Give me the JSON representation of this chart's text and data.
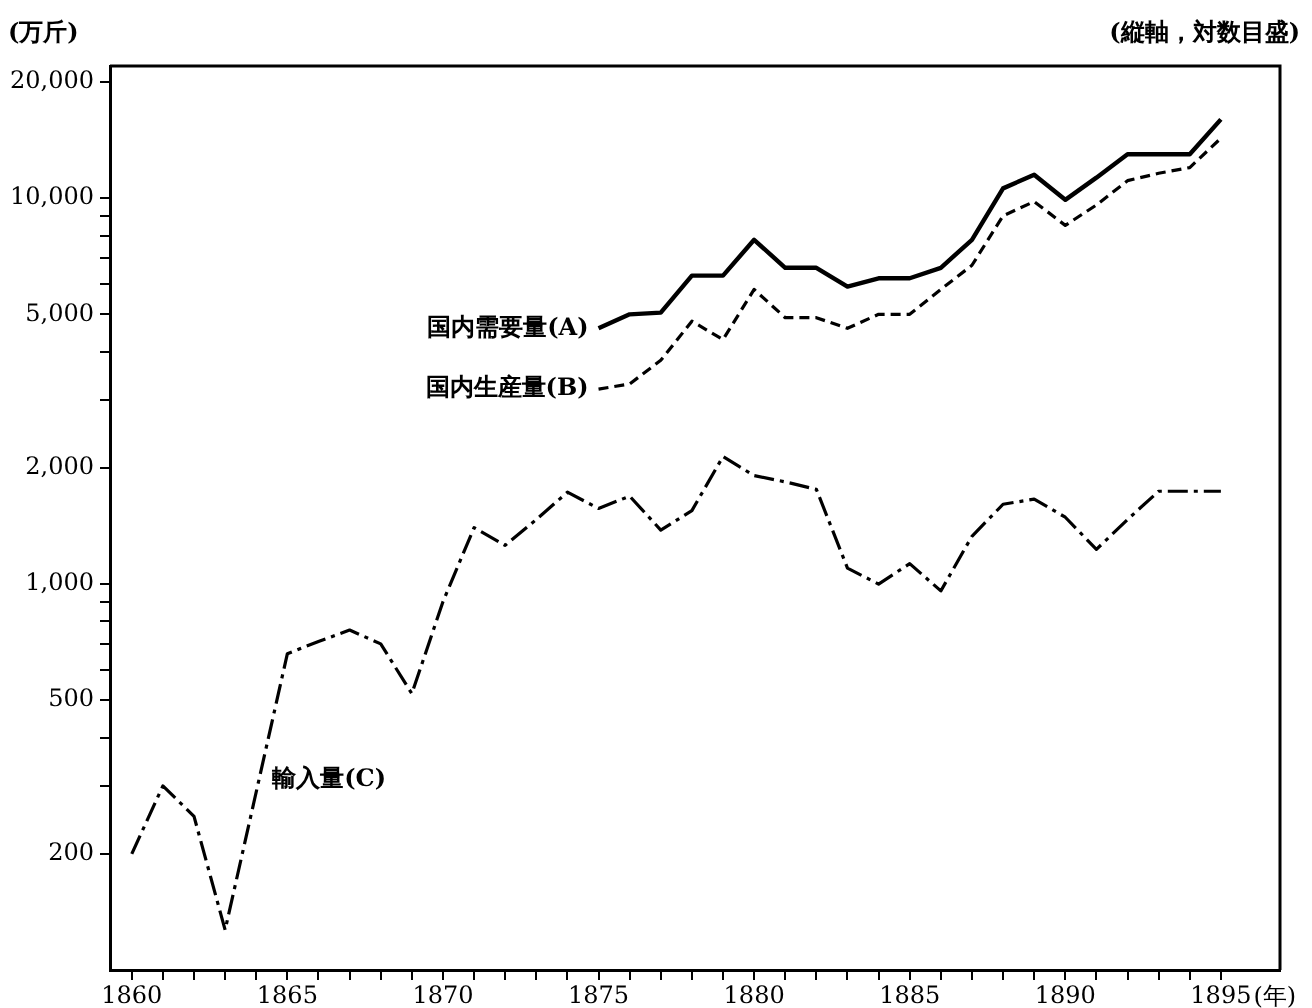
{
  "chart_data": {
    "type": "line",
    "ylabel": "(万斤)",
    "xlabel": "(年)",
    "annotations": [
      "(縦軸，対数目盛)"
    ],
    "log": "y",
    "grid": false,
    "legend": false,
    "marker": "none",
    "xlim": [
      1859.3,
      1896.9
    ],
    "xticks": [
      1860,
      {
        "value": 1861,
        "label": null
      },
      {
        "value": 1862,
        "label": null
      },
      {
        "value": 1863,
        "label": null
      },
      {
        "value": 1864,
        "label": null
      },
      1865,
      {
        "value": 1866,
        "label": null
      },
      {
        "value": 1867,
        "label": null
      },
      {
        "value": 1868,
        "label": null
      },
      {
        "value": 1869,
        "label": null
      },
      1870,
      {
        "value": 1871,
        "label": null
      },
      {
        "value": 1872,
        "label": null
      },
      {
        "value": 1873,
        "label": null
      },
      {
        "value": 1874,
        "label": null
      },
      1875,
      {
        "value": 1876,
        "label": null
      },
      {
        "value": 1877,
        "label": null
      },
      {
        "value": 1878,
        "label": null
      },
      {
        "value": 1879,
        "label": null
      },
      1880,
      {
        "value": 1881,
        "label": null
      },
      {
        "value": 1882,
        "label": null
      },
      {
        "value": 1883,
        "label": null
      },
      {
        "value": 1884,
        "label": null
      },
      1885,
      {
        "value": 1886,
        "label": null
      },
      {
        "value": 1887,
        "label": null
      },
      {
        "value": 1888,
        "label": null
      },
      {
        "value": 1889,
        "label": null
      },
      1890,
      {
        "value": 1891,
        "label": null
      },
      {
        "value": 1892,
        "label": null
      },
      {
        "value": 1893,
        "label": null
      },
      {
        "value": 1894,
        "label": null
      },
      1895
    ],
    "ylim": [
      100,
      22000
    ],
    "yticks": [
      200,
      {
        "value": 300,
        "label": null
      },
      {
        "value": 400,
        "label": null
      },
      500,
      {
        "value": 600,
        "label": null
      },
      {
        "value": 700,
        "label": null
      },
      {
        "value": 800,
        "label": null
      },
      {
        "value": 900,
        "label": null
      },
      {
        "value": 1000,
        "label": "1,000"
      },
      {
        "value": 2000,
        "label": "2,000"
      },
      {
        "value": 3000,
        "label": null
      },
      {
        "value": 4000,
        "label": null
      },
      {
        "value": 5000,
        "label": "5,000"
      },
      {
        "value": 6000,
        "label": null
      },
      {
        "value": 7000,
        "label": null
      },
      {
        "value": 8000,
        "label": null
      },
      {
        "value": 9000,
        "label": null
      },
      {
        "value": 10000,
        "label": "10,000"
      },
      {
        "value": 20000,
        "label": "20,000"
      }
    ],
    "series": [
      {
        "name": "国内需要量(A)",
        "color": "#000000",
        "line_style": "solid",
        "x": [
          1875,
          1876,
          1877,
          1878,
          1879,
          1880,
          1881,
          1882,
          1883,
          1884,
          1885,
          1886,
          1887,
          1888,
          1889,
          1890,
          1891,
          1892,
          1893,
          1894,
          1895
        ],
        "values": [
          4600,
          5000,
          5050,
          6300,
          6300,
          7800,
          6600,
          6600,
          5900,
          6200,
          6200,
          6600,
          7800,
          10600,
          11500,
          9900,
          11300,
          13000,
          13000,
          13000,
          16000
        ]
      },
      {
        "name": "国内生産量(B)",
        "color": "#000000",
        "line_style": "dashed",
        "x": [
          1875,
          1876,
          1877,
          1878,
          1879,
          1880,
          1881,
          1882,
          1883,
          1884,
          1885,
          1886,
          1887,
          1888,
          1889,
          1890,
          1891,
          1892,
          1893,
          1894,
          1895
        ],
        "values": [
          3200,
          3300,
          3800,
          4800,
          4300,
          5800,
          4900,
          4900,
          4600,
          5000,
          5000,
          5800,
          6700,
          9000,
          9800,
          8500,
          9600,
          11100,
          11600,
          12000,
          14300
        ]
      },
      {
        "name": "輸入量(C)",
        "color": "#000000",
        "line_style": "dashdot",
        "x": [
          1860,
          1861,
          1862,
          1863,
          1865,
          1866,
          1867,
          1868,
          1869,
          1870,
          1871,
          1872,
          1873,
          1874,
          1875,
          1876,
          1877,
          1878,
          1879,
          1880,
          1881,
          1882,
          1883,
          1884,
          1885,
          1886,
          1887,
          1888,
          1889,
          1890,
          1891,
          1892,
          1893,
          1894,
          1895
        ],
        "values": [
          200,
          300,
          250,
          127,
          660,
          710,
          760,
          700,
          520,
          900,
          1400,
          1260,
          1470,
          1730,
          1570,
          1690,
          1380,
          1550,
          2140,
          1910,
          1840,
          1760,
          1100,
          1000,
          1130,
          960,
          1330,
          1610,
          1660,
          1490,
          1230,
          1470,
          1740,
          1740,
          1740
        ]
      }
    ]
  }
}
